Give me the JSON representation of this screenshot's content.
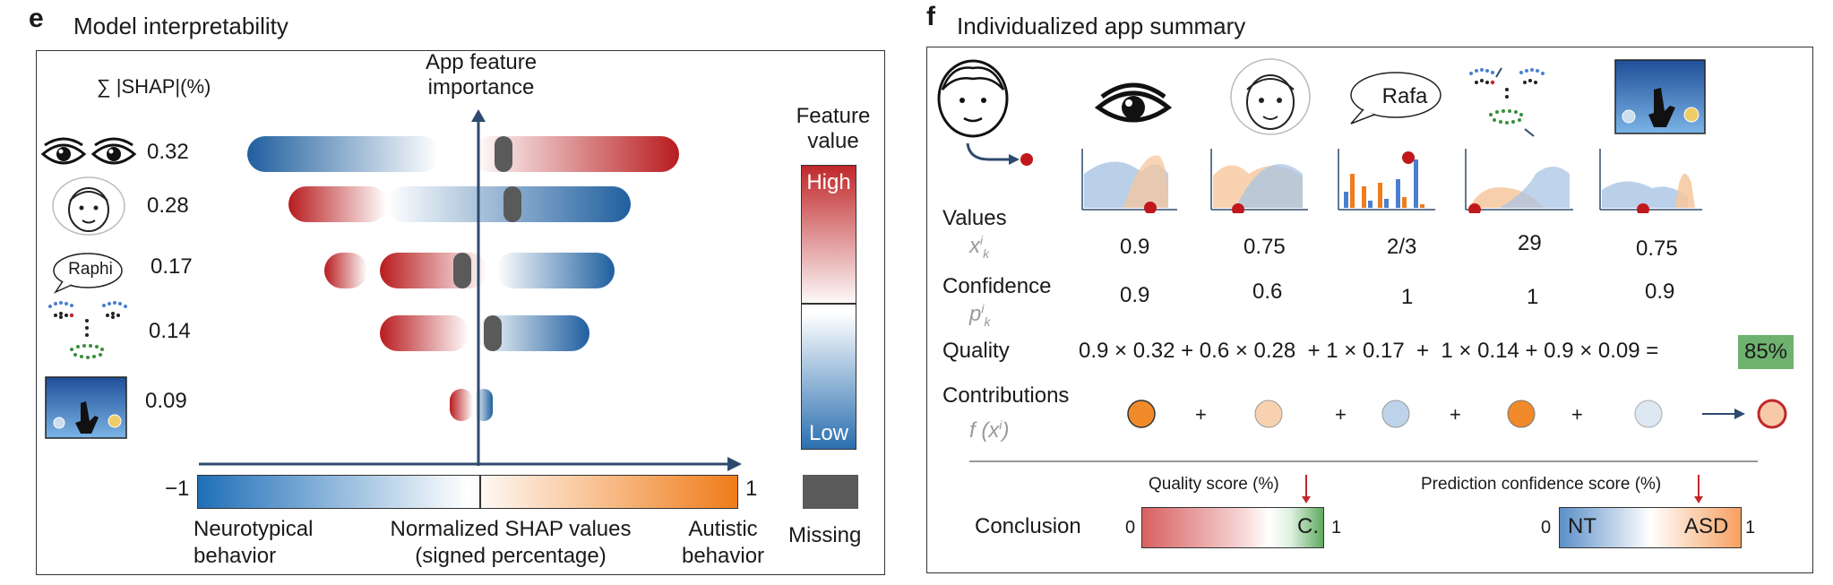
{
  "panel_e": {
    "letter": "e",
    "title": "Model interpretability",
    "shap_header": "∑ |SHAP|(%)",
    "axis_title_line1": "App feature",
    "axis_title_line2": "importance",
    "features": [
      {
        "icon": "eyes-icon",
        "value": "0.32"
      },
      {
        "icon": "child-face-icon",
        "value": "0.28"
      },
      {
        "icon": "speech-bubble-icon",
        "label": "Raphi",
        "value": "0.17"
      },
      {
        "icon": "face-landmarks-icon",
        "value": "0.14"
      },
      {
        "icon": "touch-game-icon",
        "value": "0.09"
      }
    ],
    "feature_value_title_line1": "Feature",
    "feature_value_title_line2": "value",
    "high_label": "High",
    "low_label": "Low",
    "colorbar_min": "−1",
    "colorbar_max": "1",
    "neurotypical_line1": "Neurotypical",
    "neurotypical_line2": "behavior",
    "normalized_line1": "Normalized SHAP values",
    "normalized_line2": "(signed percentage)",
    "autistic_line1": "Autistic",
    "autistic_line2": "behavior",
    "missing_label": "Missing",
    "colors": {
      "blue": "#2a6fb0",
      "red": "#c0282a",
      "orange": "#f07c1a",
      "missing": "#5a5a5a"
    }
  },
  "panel_f": {
    "letter": "f",
    "title": "Individualized app summary",
    "bubble_label": "Rafa",
    "values_label": "Values",
    "values_symbol": "x",
    "values_sub": "k",
    "values_sup": "i",
    "confidence_label": "Confidence",
    "confidence_symbol": "p",
    "values": [
      "0.9",
      "0.75",
      "2/3",
      "29",
      "0.75"
    ],
    "confidences": [
      "0.9",
      "0.6",
      "1",
      "1",
      "0.9"
    ],
    "quality_label": "Quality",
    "quality_terms": [
      "0.9 × 0.32",
      "+",
      "0.6 × 0.28",
      "+",
      "1 × 0.17",
      "+",
      "1 × 0.14",
      "+",
      "0.9 × 0.09",
      "="
    ],
    "quality_result": "85%",
    "contributions_label": "Contributions",
    "contributions_formula_f": "f",
    "contributions_formula_x": "(x",
    "contributions_formula_sup": "i",
    "contributions_formula_close": ")",
    "plus": "+",
    "conclusion_label": "Conclusion",
    "quality_score_title": "Quality score (%)",
    "quality_score_min": "0",
    "quality_score_max": "1",
    "quality_score_mark": "C.",
    "prediction_title": "Prediction confidence score (%)",
    "prediction_min": "0",
    "prediction_max": "1",
    "prediction_left": "NT",
    "prediction_right": "ASD"
  }
}
